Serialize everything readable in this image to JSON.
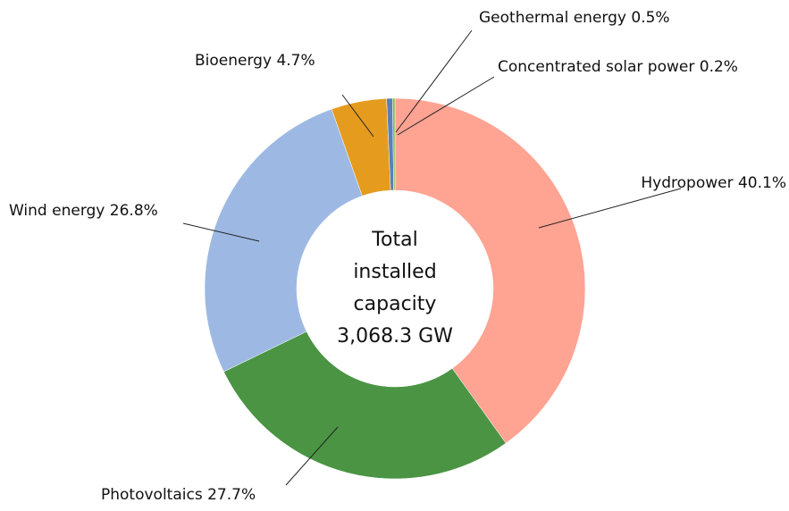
{
  "chart_data": {
    "type": "pie",
    "donut": true,
    "categories": [
      "Hydropower",
      "Photovoltaics",
      "Wind energy",
      "Bioenergy",
      "Geothermal energy",
      "Concentrated solar power"
    ],
    "values": [
      40.1,
      27.7,
      26.8,
      4.7,
      0.5,
      0.2
    ],
    "value_labels": [
      "40.1%",
      "27.7%",
      "26.8%",
      "4.7%",
      "0.5%",
      "0.2%"
    ],
    "colors": [
      "#ffa393",
      "#4a9444",
      "#9db9e3",
      "#e59b1e",
      "#5b7fb8",
      "#8ab84a"
    ],
    "center_label": [
      "Total",
      "installed",
      "capacity",
      "3,068.3 GW"
    ]
  }
}
